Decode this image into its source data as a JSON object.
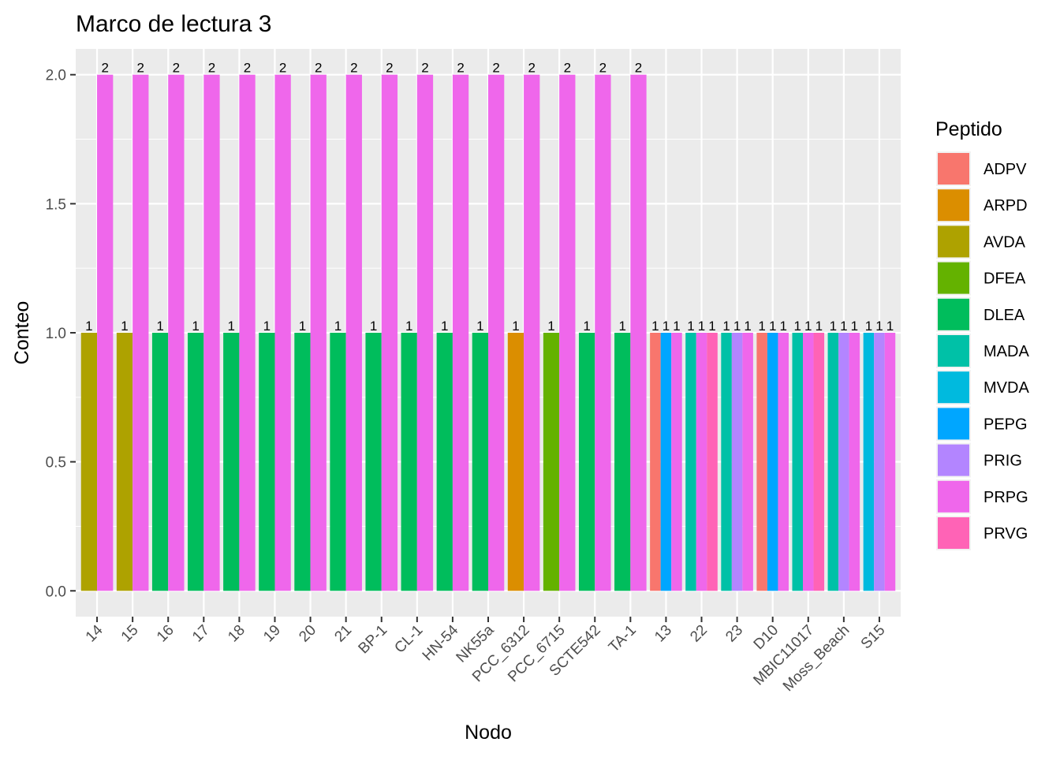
{
  "chart_data": {
    "type": "bar",
    "title": "Marco de lectura 3",
    "xlabel": "Nodo",
    "ylabel": "Conteo",
    "ylim": [
      -0.1,
      2.1
    ],
    "yticks": [
      0.0,
      0.5,
      1.0,
      1.5,
      2.0
    ],
    "ytick_labels": [
      "0.0",
      "0.5",
      "1.0",
      "1.5",
      "2.0"
    ],
    "grid": true,
    "legend_position": "right",
    "legend_title": "Peptido",
    "legend": [
      {
        "name": "ADPV",
        "color": "#F8766D"
      },
      {
        "name": "ARPD",
        "color": "#DB8E00"
      },
      {
        "name": "AVDA",
        "color": "#AEA200"
      },
      {
        "name": "DFEA",
        "color": "#64B200"
      },
      {
        "name": "DLEA",
        "color": "#00BD5C"
      },
      {
        "name": "MADA",
        "color": "#00C1A7"
      },
      {
        "name": "MVDA",
        "color": "#00BADE"
      },
      {
        "name": "PEPG",
        "color": "#00A6FF"
      },
      {
        "name": "PRIG",
        "color": "#B385FF"
      },
      {
        "name": "PRPG",
        "color": "#EF67EB"
      },
      {
        "name": "PRVG",
        "color": "#FF63B6"
      }
    ],
    "categories": [
      "14",
      "15",
      "16",
      "17",
      "18",
      "19",
      "20",
      "21",
      "BP-1",
      "CL-1",
      "HN-54",
      "NK55a",
      "PCC_6312",
      "PCC_6715",
      "SCTE542",
      "TA-1",
      "13",
      "22",
      "23",
      "D10",
      "MBIC11017",
      "Moss_Beach",
      "S15"
    ],
    "groups": [
      {
        "node": "14",
        "bars": [
          {
            "peptide": "AVDA",
            "value": 1
          },
          {
            "peptide": "PRPG",
            "value": 2
          }
        ]
      },
      {
        "node": "15",
        "bars": [
          {
            "peptide": "AVDA",
            "value": 1
          },
          {
            "peptide": "PRPG",
            "value": 2
          }
        ]
      },
      {
        "node": "16",
        "bars": [
          {
            "peptide": "DLEA",
            "value": 1
          },
          {
            "peptide": "PRPG",
            "value": 2
          }
        ]
      },
      {
        "node": "17",
        "bars": [
          {
            "peptide": "DLEA",
            "value": 1
          },
          {
            "peptide": "PRPG",
            "value": 2
          }
        ]
      },
      {
        "node": "18",
        "bars": [
          {
            "peptide": "DLEA",
            "value": 1
          },
          {
            "peptide": "PRPG",
            "value": 2
          }
        ]
      },
      {
        "node": "19",
        "bars": [
          {
            "peptide": "DLEA",
            "value": 1
          },
          {
            "peptide": "PRPG",
            "value": 2
          }
        ]
      },
      {
        "node": "20",
        "bars": [
          {
            "peptide": "DLEA",
            "value": 1
          },
          {
            "peptide": "PRPG",
            "value": 2
          }
        ]
      },
      {
        "node": "21",
        "bars": [
          {
            "peptide": "DLEA",
            "value": 1
          },
          {
            "peptide": "PRPG",
            "value": 2
          }
        ]
      },
      {
        "node": "BP-1",
        "bars": [
          {
            "peptide": "DLEA",
            "value": 1
          },
          {
            "peptide": "PRPG",
            "value": 2
          }
        ]
      },
      {
        "node": "CL-1",
        "bars": [
          {
            "peptide": "DLEA",
            "value": 1
          },
          {
            "peptide": "PRPG",
            "value": 2
          }
        ]
      },
      {
        "node": "HN-54",
        "bars": [
          {
            "peptide": "DLEA",
            "value": 1
          },
          {
            "peptide": "PRPG",
            "value": 2
          }
        ]
      },
      {
        "node": "NK55a",
        "bars": [
          {
            "peptide": "DLEA",
            "value": 1
          },
          {
            "peptide": "PRPG",
            "value": 2
          }
        ]
      },
      {
        "node": "PCC_6312",
        "bars": [
          {
            "peptide": "ARPD",
            "value": 1
          },
          {
            "peptide": "PRPG",
            "value": 2
          }
        ]
      },
      {
        "node": "PCC_6715",
        "bars": [
          {
            "peptide": "DFEA",
            "value": 1
          },
          {
            "peptide": "PRPG",
            "value": 2
          }
        ]
      },
      {
        "node": "SCTE542",
        "bars": [
          {
            "peptide": "DLEA",
            "value": 1
          },
          {
            "peptide": "PRPG",
            "value": 2
          }
        ]
      },
      {
        "node": "TA-1",
        "bars": [
          {
            "peptide": "DLEA",
            "value": 1
          },
          {
            "peptide": "PRPG",
            "value": 2
          }
        ]
      },
      {
        "node": "13",
        "bars": [
          {
            "peptide": "ADPV",
            "value": 1
          },
          {
            "peptide": "PEPG",
            "value": 1
          },
          {
            "peptide": "PRPG",
            "value": 1
          }
        ]
      },
      {
        "node": "22",
        "bars": [
          {
            "peptide": "MADA",
            "value": 1
          },
          {
            "peptide": "PRPG",
            "value": 1
          },
          {
            "peptide": "PRVG",
            "value": 1
          }
        ]
      },
      {
        "node": "23",
        "bars": [
          {
            "peptide": "MADA",
            "value": 1
          },
          {
            "peptide": "PRIG",
            "value": 1
          },
          {
            "peptide": "PRPG",
            "value": 1
          }
        ]
      },
      {
        "node": "D10",
        "bars": [
          {
            "peptide": "ADPV",
            "value": 1
          },
          {
            "peptide": "PEPG",
            "value": 1
          },
          {
            "peptide": "PRPG",
            "value": 1
          }
        ]
      },
      {
        "node": "MBIC11017",
        "bars": [
          {
            "peptide": "MADA",
            "value": 1
          },
          {
            "peptide": "PRPG",
            "value": 1
          },
          {
            "peptide": "PRVG",
            "value": 1
          }
        ]
      },
      {
        "node": "Moss_Beach",
        "bars": [
          {
            "peptide": "MADA",
            "value": 1
          },
          {
            "peptide": "PRIG",
            "value": 1
          },
          {
            "peptide": "PRPG",
            "value": 1
          }
        ]
      },
      {
        "node": "S15",
        "bars": [
          {
            "peptide": "MVDA",
            "value": 1
          },
          {
            "peptide": "PRIG",
            "value": 1
          },
          {
            "peptide": "PRPG",
            "value": 1
          }
        ]
      }
    ]
  }
}
